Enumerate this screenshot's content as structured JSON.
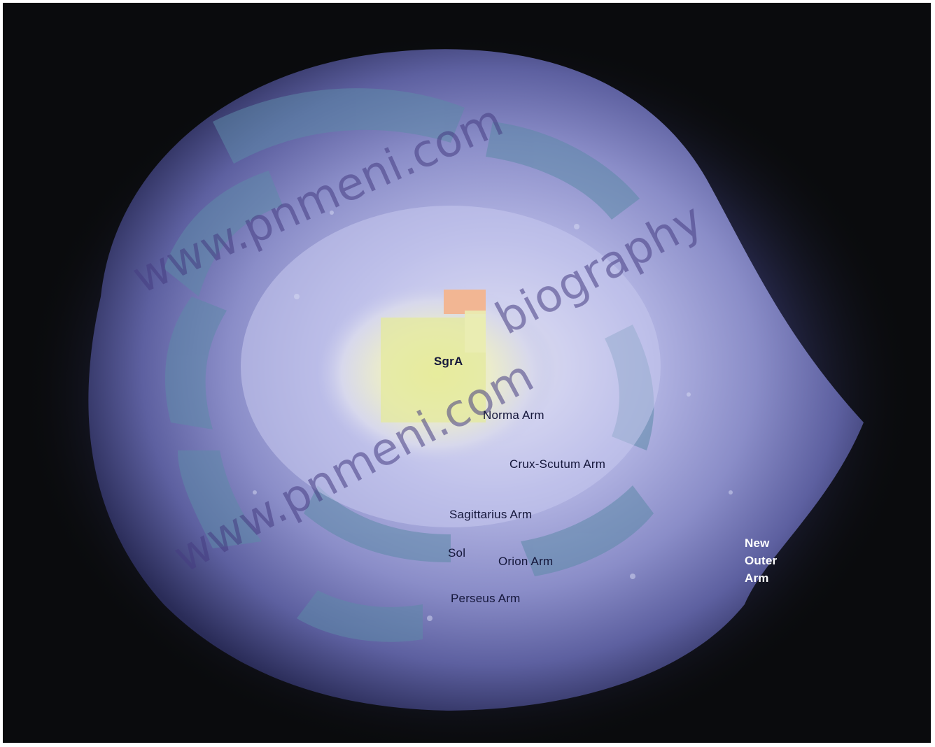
{
  "image": {
    "kind": "illustration of the Milky Way galaxy viewed from above",
    "colors": {
      "background": "#0a0b0d",
      "outer_disk": "#3c3f7a",
      "mid_disk": "#8488c4",
      "inner_disk": "#c8c9ee",
      "bulge": "#e6e8c2",
      "core": "#e8ee9a",
      "core_highlight": "#f0b892",
      "arm_dust": "#5e88a6"
    }
  },
  "labels": {
    "sgra": "SgrA",
    "norma": "Norma Arm",
    "crux": "Crux-Scutum Arm",
    "sagittarius": "Sagittarius Arm",
    "sol": "Sol",
    "orion": "Orion Arm",
    "perseus": "Perseus Arm",
    "outer_line1": "New",
    "outer_line2": "Outer",
    "outer_line3": "Arm"
  },
  "watermarks": {
    "top": "www.pnmeni.com",
    "right": "biography",
    "bottom": "www.pnmeni.com"
  }
}
